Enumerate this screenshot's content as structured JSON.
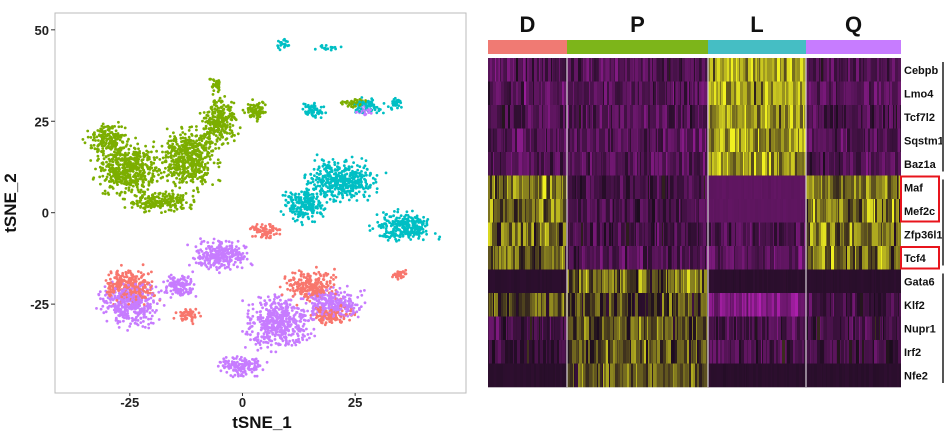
{
  "chart_data": [
    {
      "type": "scatter",
      "xlabel": "tSNE_1",
      "ylabel": "tSNE_2",
      "xlim": [
        -41.6,
        49.6
      ],
      "ylim": [
        -49.3,
        54.6
      ],
      "xticks": [
        "-25",
        "0",
        "25"
      ],
      "xtick_values": [
        -25,
        0,
        25
      ],
      "yticks": [
        "-25",
        "0",
        "25",
        "50"
      ],
      "ytick_values": [
        -25,
        0,
        25,
        50
      ],
      "grid": false,
      "legend": "none",
      "series": [
        {
          "cluster": "Q",
          "color": "#C77CFF",
          "regions": [
            [
              -25,
              -25,
              9,
              8
            ],
            [
              -5,
              -12,
              9,
              6
            ],
            [
              8,
              -30,
              10,
              10
            ],
            [
              20,
              -25,
              9,
              6
            ],
            [
              0,
              -42,
              7,
              4
            ],
            [
              -14,
              -20,
              5,
              5
            ],
            [
              27,
              28,
              3,
              2
            ]
          ]
        },
        {
          "cluster": "D",
          "color": "#F8766D",
          "regions": [
            [
              -25,
              -20,
              8,
              7
            ],
            [
              15,
              -20,
              8,
              6
            ],
            [
              5,
              -5,
              5,
              3
            ],
            [
              20,
              -28,
              6,
              4
            ],
            [
              -12,
              -28,
              4,
              3
            ],
            [
              35,
              -17,
              3,
              2
            ]
          ]
        },
        {
          "cluster": "P",
          "color": "#7CAE00",
          "regions": [
            [
              -25,
              12,
              10,
              10
            ],
            [
              -12,
              15,
              9,
              11
            ],
            [
              -5,
              25,
              6,
              9
            ],
            [
              -30,
              20,
              6,
              6
            ],
            [
              -18,
              3,
              10,
              4
            ],
            [
              3,
              28,
              4,
              4
            ],
            [
              -6,
              35,
              2,
              3
            ],
            [
              25,
              30,
              4,
              2
            ]
          ]
        },
        {
          "cluster": "L",
          "color": "#00BFC4",
          "regions": [
            [
              22,
              9,
              11,
              8
            ],
            [
              36,
              -4,
              9,
              6
            ],
            [
              14,
              2,
              7,
              6
            ],
            [
              9,
              46,
              2,
              2
            ],
            [
              19,
              45,
              4,
              1
            ],
            [
              28,
              29,
              5,
              3
            ],
            [
              16,
              28,
              4,
              3
            ],
            [
              34,
              30,
              2,
              3
            ]
          ]
        }
      ]
    },
    {
      "type": "heatmap",
      "columns": [
        {
          "label": "D",
          "color": "#F07A73"
        },
        {
          "label": "P",
          "color": "#7DB51A"
        },
        {
          "label": "L",
          "color": "#45BEC4"
        },
        {
          "label": "Q",
          "color": "#C77CFF"
        }
      ],
      "color_scale": {
        "low": "#B020B0",
        "mid": "#1C0C1E",
        "high": "#F0F020"
      },
      "rows": [
        {
          "gene": "Cebpb",
          "values": [
            -0.7,
            -0.7,
            1.0,
            -0.7
          ]
        },
        {
          "gene": "Lmo4",
          "values": [
            -0.8,
            -0.8,
            0.9,
            -0.8
          ]
        },
        {
          "gene": "Tcf7l2",
          "values": [
            -0.6,
            -0.7,
            0.9,
            -0.6
          ]
        },
        {
          "gene": "Sqstm1",
          "values": [
            -0.7,
            -0.8,
            0.9,
            -0.7
          ]
        },
        {
          "gene": "Baz1a",
          "values": [
            -0.7,
            -0.7,
            0.9,
            -0.7
          ]
        },
        {
          "gene": "Maf",
          "values": [
            0.7,
            -0.5,
            -0.9,
            0.7
          ],
          "highlighted": true
        },
        {
          "gene": "Mef2c",
          "values": [
            0.6,
            -0.6,
            -0.9,
            0.7
          ],
          "highlighted": true
        },
        {
          "gene": "Zfp36l1",
          "values": [
            0.6,
            -0.6,
            -0.7,
            0.6
          ]
        },
        {
          "gene": "Tcf4",
          "values": [
            0.5,
            -0.7,
            -0.8,
            0.6
          ],
          "highlighted": true
        },
        {
          "gene": "Gata6",
          "values": [
            -0.2,
            0.6,
            -0.2,
            -0.2
          ]
        },
        {
          "gene": "Klf2",
          "values": [
            0.4,
            0.3,
            -1.4,
            -0.5
          ]
        },
        {
          "gene": "Nupr1",
          "values": [
            -0.5,
            0.5,
            -0.6,
            -0.5
          ]
        },
        {
          "gene": "Irf2",
          "values": [
            -0.4,
            0.4,
            -0.6,
            -0.4
          ]
        },
        {
          "gene": "Nfe2",
          "values": [
            -0.2,
            0.5,
            -0.2,
            -0.2
          ]
        }
      ],
      "gene_groups": [
        [
          "Cebpb",
          "Baz1a"
        ],
        [
          "Maf",
          "Tcf4"
        ],
        [
          "Gata6",
          "Nfe2"
        ]
      ],
      "highlight_color": "#E8141C"
    }
  ]
}
